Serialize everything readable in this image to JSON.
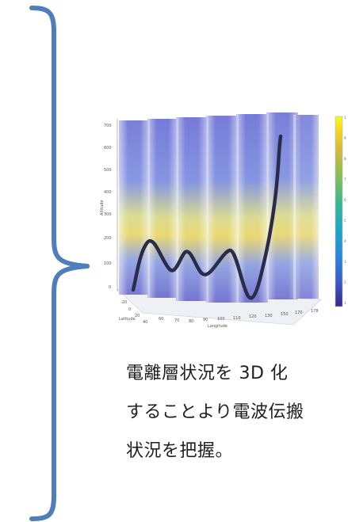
{
  "brace": {
    "color": "#4f7fba"
  },
  "figure": {
    "axis_label_y": "Altitude",
    "axis_label_x": "Longitude",
    "axis_label_lat": "Latitude",
    "colormap": [
      "#352a87",
      "#3a55c8",
      "#2b83d9",
      "#1aa8c8",
      "#39b98f",
      "#8cc04e",
      "#d3b93b",
      "#f9d31f",
      "#f9fb0e"
    ],
    "curve_color": "#2b2c4a"
  },
  "caption": {
    "line1": "電離層状況を 3D 化",
    "line2": "することより電波伝搬",
    "line3": "状況を把握。"
  }
}
